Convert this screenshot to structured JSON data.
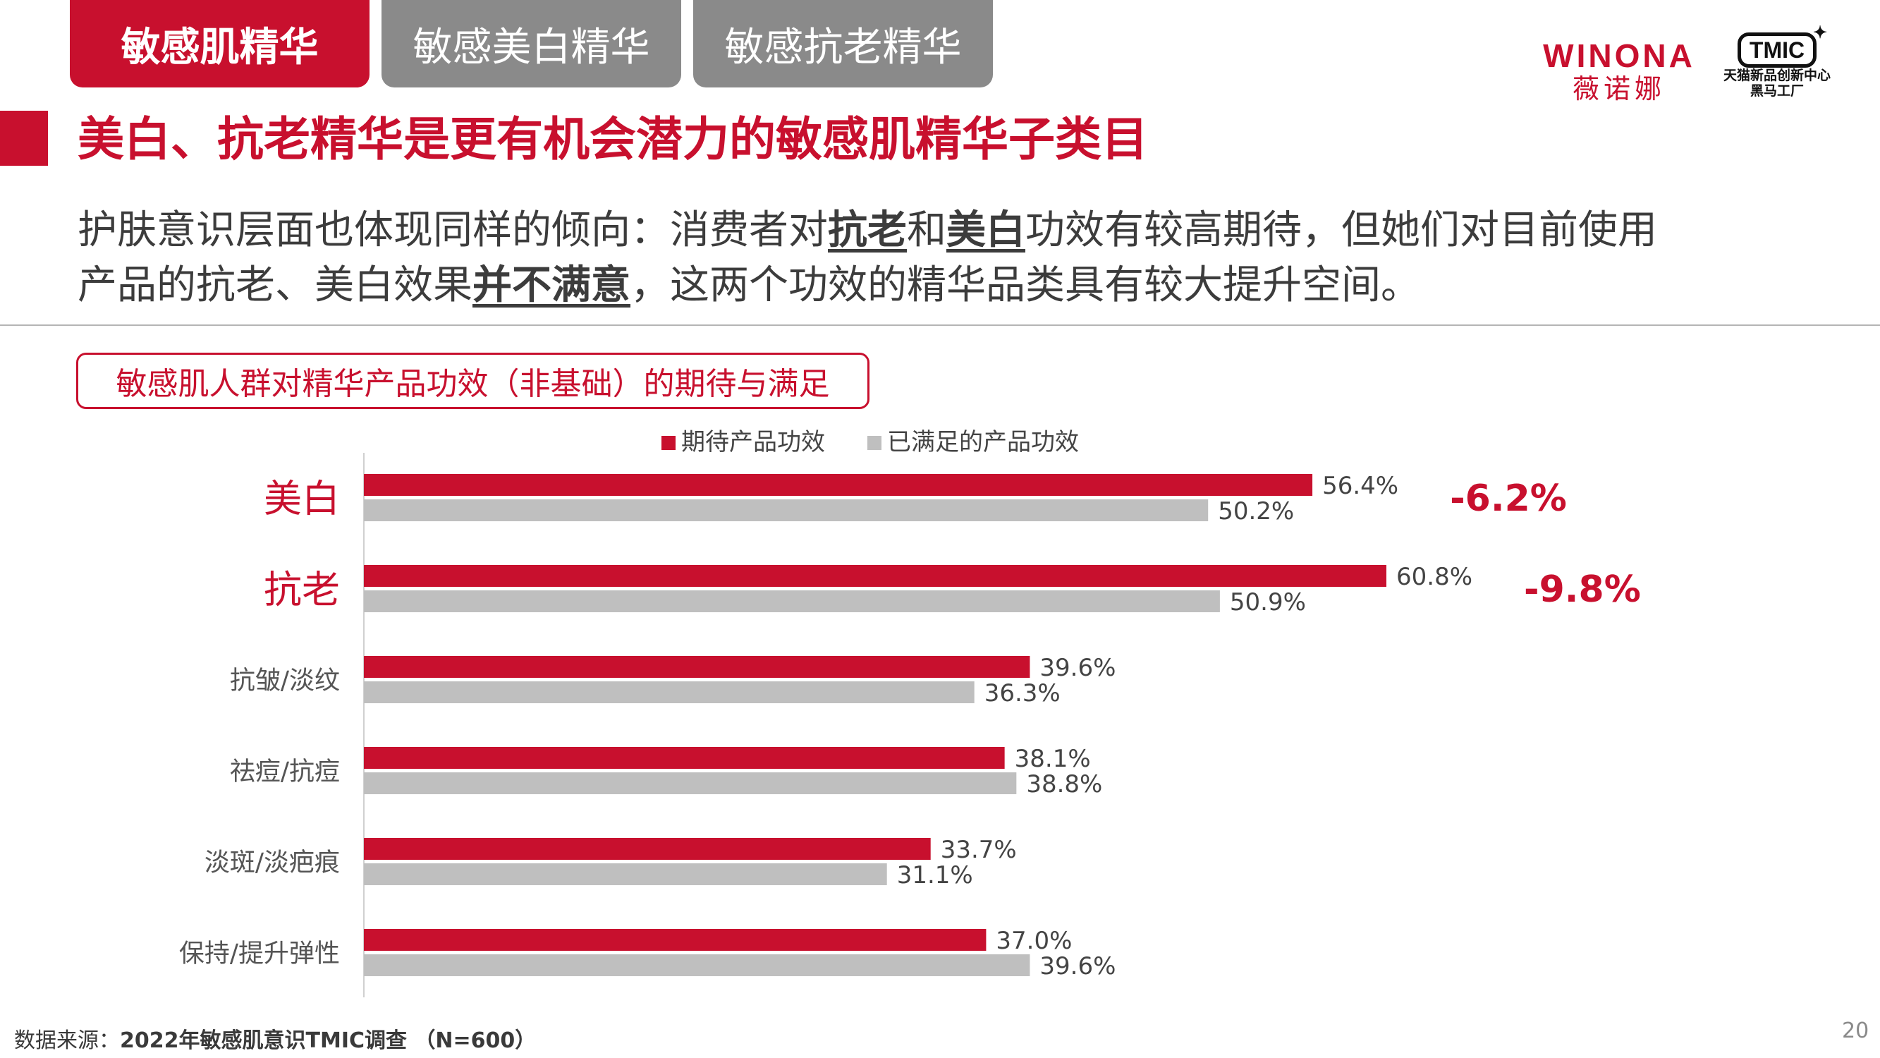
{
  "tabs": [
    {
      "label": "敏感肌精华",
      "active": true
    },
    {
      "label": "敏感美白精华",
      "active": false
    },
    {
      "label": "敏感抗老精华",
      "active": false
    }
  ],
  "brand": {
    "winona_word": "WINONA",
    "winona_cn": "薇诺娜"
  },
  "tmic": {
    "logo_text": "TMIC",
    "line1": "天猫新品创新中心",
    "line2": "黑马工厂"
  },
  "page_title": "美白、抗老精华是更有机会潜力的敏感肌精华子类目",
  "intro": {
    "line1_a": "护肤意识层面也体现同样的倾向：消费者对",
    "line1_b": "抗老",
    "line1_c": "和",
    "line1_d": "美白",
    "line1_e": "功效有较高期待，但她们对目前使用",
    "line2_a": "产品的抗老、美白效果",
    "line2_b": "并不满意",
    "line2_c": "，这两个功效的精华品类具有较大提升空间。"
  },
  "colors": {
    "accent": "#c8102e",
    "gray_bar": "#bfbfbf"
  },
  "chart_data": {
    "type": "bar",
    "orientation": "horizontal",
    "title": "敏感肌人群对精华产品功效（非基础）的期待与满足",
    "categories": [
      "美白",
      "抗老",
      "抗皱/淡纹",
      "祛痘/抗痘",
      "淡斑/淡疤痕",
      "保持/提升弹性"
    ],
    "highlight_categories": [
      "美白",
      "抗老"
    ],
    "series": [
      {
        "name": "期待产品功效",
        "color": "#c8102e",
        "values": [
          56.4,
          60.8,
          39.6,
          38.1,
          33.7,
          37.0
        ]
      },
      {
        "name": "已满足的产品功效",
        "color": "#bfbfbf",
        "values": [
          50.2,
          50.9,
          36.3,
          38.8,
          31.1,
          39.6
        ]
      }
    ],
    "value_labels": [
      [
        "56.4%",
        "60.8%",
        "39.6%",
        "38.1%",
        "33.7%",
        "37.0%"
      ],
      [
        "50.2%",
        "50.9%",
        "36.3%",
        "38.8%",
        "31.1%",
        "39.6%"
      ]
    ],
    "gap_annotations": [
      {
        "category": "美白",
        "text": "-6.2%"
      },
      {
        "category": "抗老",
        "text": "-9.8%"
      }
    ],
    "legend_position": "top",
    "grid": false,
    "xlim": [
      0,
      60.8
    ]
  },
  "source": {
    "label": "数据来源：",
    "text": "2022年敏感肌意识TMIC调查 （N=600）"
  },
  "page_number": "20"
}
